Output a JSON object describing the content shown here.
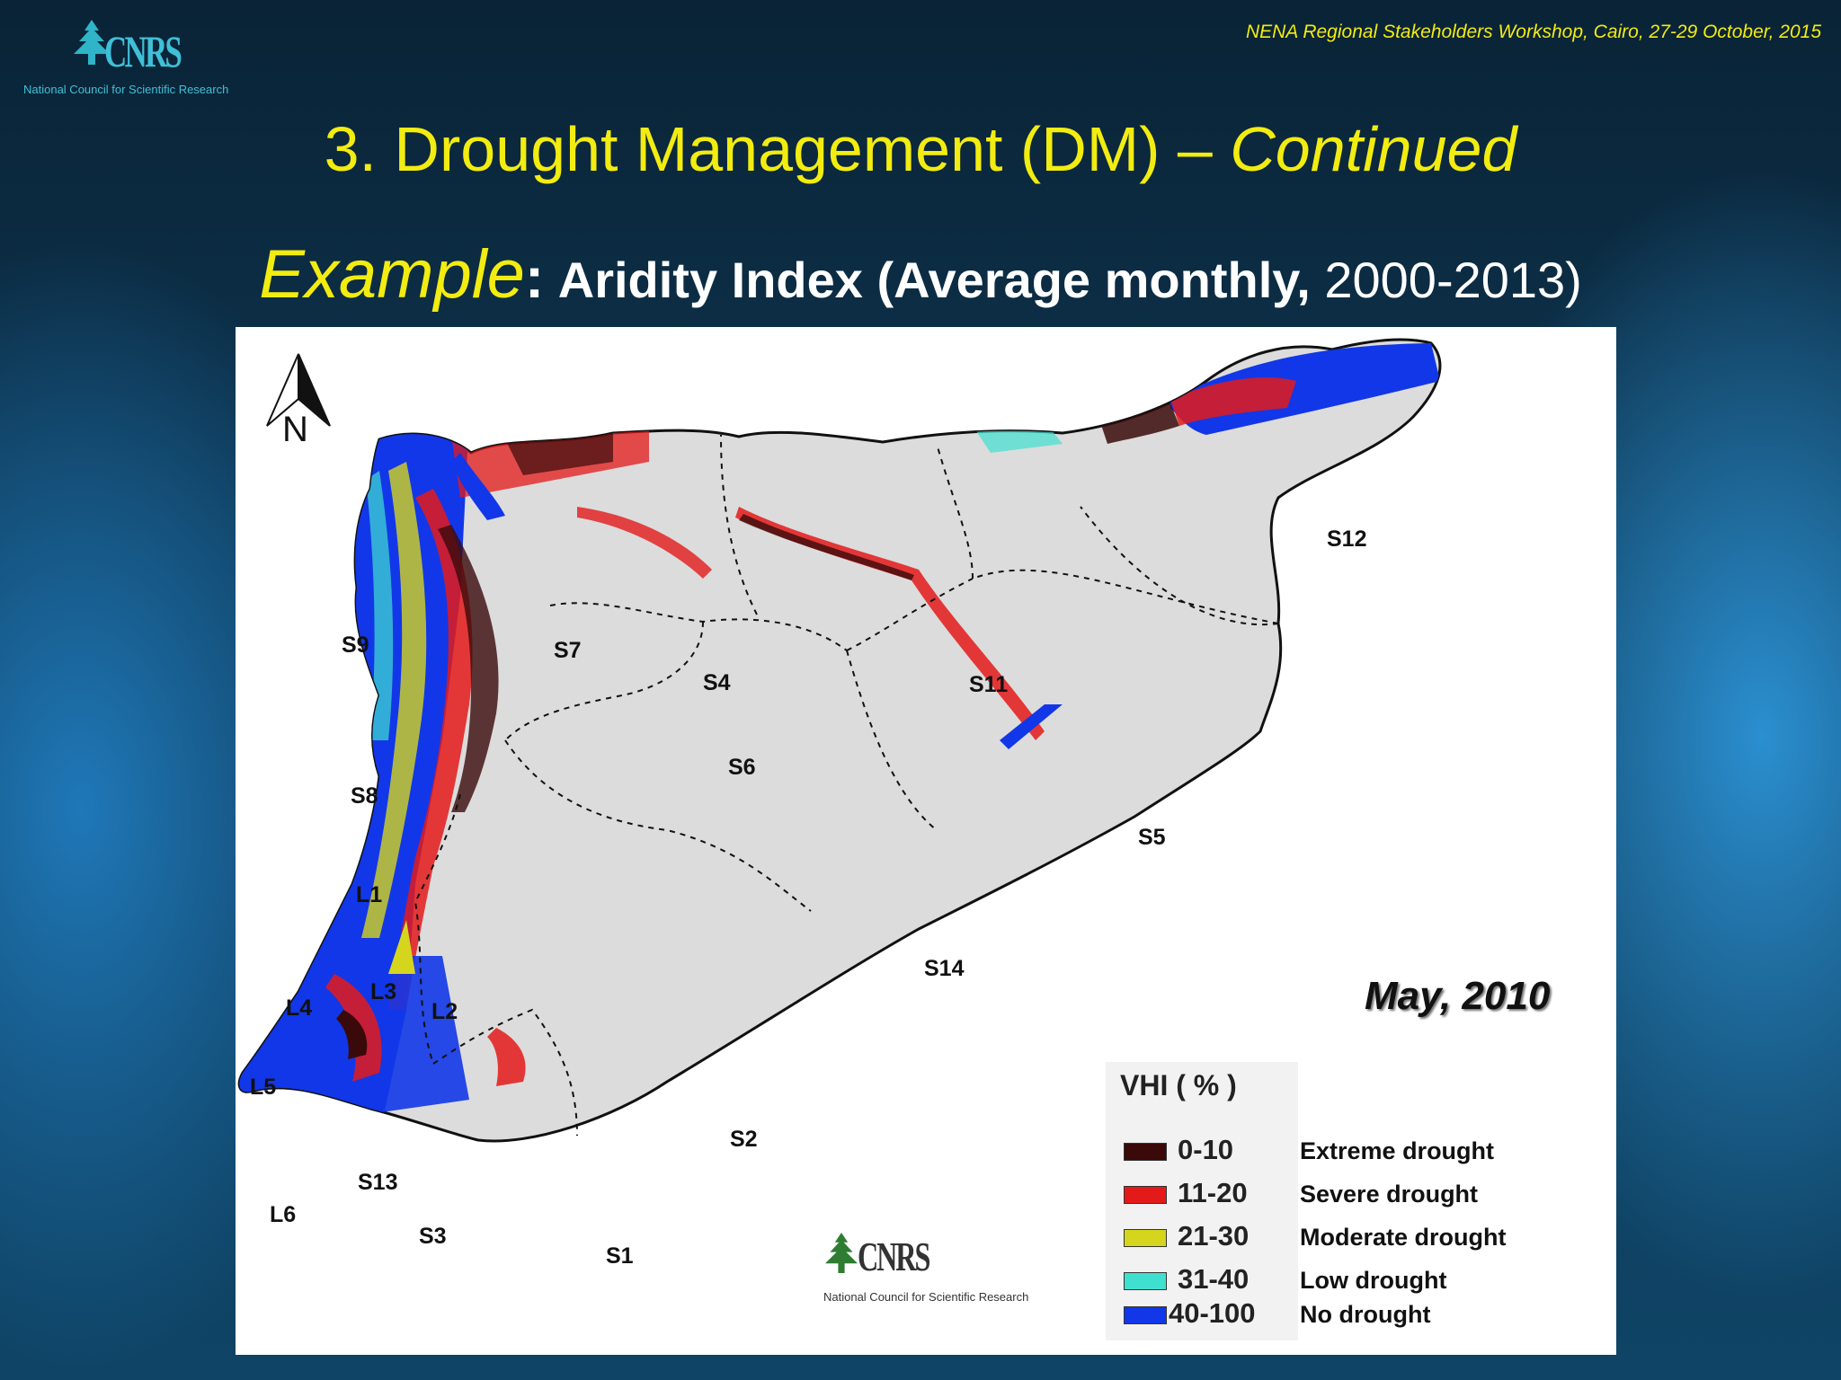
{
  "header": {
    "logo_text": "CNRS",
    "logo_subtitle": "National Council for Scientific Research",
    "workshop": "NENA Regional  Stakeholders Workshop, Cairo, 27-29 October, 2015"
  },
  "title": {
    "main": "3. Drought Management (DM)  –",
    "continued": "Continued"
  },
  "subtitle": {
    "example": "Example",
    "colon": ":",
    "bold": "Aridity Index (Average monthly,",
    "years": "2000-2013)"
  },
  "map": {
    "north_label": "N",
    "date": "May, 2010",
    "regions": {
      "S1": "S1",
      "S2": "S2",
      "S3": "S3",
      "S4": "S4",
      "S5": "S5",
      "S6": "S6",
      "S7": "S7",
      "S8": "S8",
      "S9": "S9",
      "S11": "S11",
      "S12": "S12",
      "S13": "S13",
      "S14": "S14",
      "L1": "L1",
      "L2": "L2",
      "L3": "L3",
      "L4": "L4",
      "L5": "L5",
      "L6": "L6"
    },
    "colors": {
      "extreme": "#3a0a0a",
      "severe": "#e41a1a",
      "moderate": "#d6d51e",
      "low": "#40e0d0",
      "none": "#1237e8",
      "land": "#dcdcdc"
    }
  },
  "legend": {
    "title": "VHI ( % )",
    "items": [
      {
        "range": "0-10",
        "label": "Extreme drought",
        "color": "#3a0a0a"
      },
      {
        "range": "11-20",
        "label": "Severe drought",
        "color": "#e41a1a"
      },
      {
        "range": "21-30",
        "label": "Moderate drought",
        "color": "#d6d51e"
      },
      {
        "range": "31-40",
        "label": "Low drought",
        "color": "#40e0d0"
      },
      {
        "range": "40-100",
        "label": "No  drought",
        "color": "#1237e8"
      }
    ]
  },
  "map_logo": {
    "text": "CNRS",
    "subtitle": "National Council for Scientific Research"
  }
}
